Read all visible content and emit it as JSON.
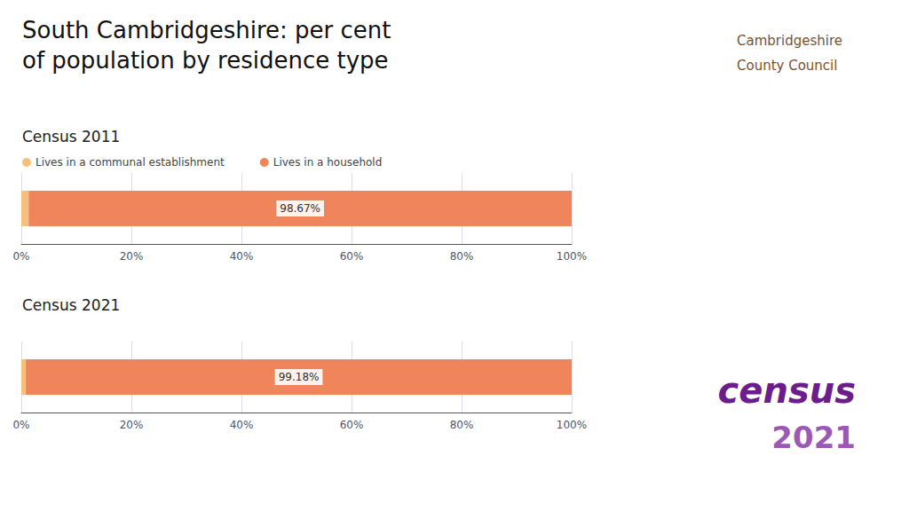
{
  "chart_data": [
    {
      "type": "bar",
      "orientation": "horizontal",
      "stacked": true,
      "title": "South Cambridgeshire: per cent\nof population by residence type",
      "subtitle": "Census 2011",
      "categories": [
        null
      ],
      "series": [
        {
          "name": "Lives in a communal establishment",
          "color": "#F5C07A",
          "values": [
            1.33
          ]
        },
        {
          "name": "Lives in a household",
          "color": "#F0845A",
          "values": [
            98.67
          ],
          "value_labels": [
            "98.67%"
          ]
        }
      ],
      "xlim": [
        0,
        100
      ],
      "xticks": [
        {
          "value": 0,
          "label": "0%"
        },
        {
          "value": 20,
          "label": "20%"
        },
        {
          "value": 40,
          "label": "40%"
        },
        {
          "value": 60,
          "label": "60%"
        },
        {
          "value": 80,
          "label": "80%"
        },
        {
          "value": 100,
          "label": "100%"
        }
      ],
      "grid": true,
      "legend": "upper left",
      "annotations": [
        {
          "text": "Cambridgeshire",
          "color": "#7B5230"
        },
        {
          "text": "County Council",
          "color": "#7B5230"
        }
      ]
    },
    {
      "type": "bar",
      "orientation": "horizontal",
      "stacked": true,
      "subtitle": "Census 2021",
      "categories": [
        null
      ],
      "series": [
        {
          "name": "Lives in a communal establishment",
          "color": "#F5C07A",
          "values": [
            0.82
          ]
        },
        {
          "name": "Lives in a household",
          "color": "#F0845A",
          "values": [
            99.18
          ],
          "value_labels": [
            "99.18%"
          ]
        }
      ],
      "xlim": [
        0,
        100
      ],
      "xticks": [
        {
          "value": 0,
          "label": "0%"
        },
        {
          "value": 20,
          "label": "20%"
        },
        {
          "value": 40,
          "label": "40%"
        },
        {
          "value": 60,
          "label": "60%"
        },
        {
          "value": 80,
          "label": "80%"
        },
        {
          "value": 100,
          "label": "100%"
        }
      ],
      "grid": true,
      "annotations": [
        {
          "text": "census",
          "color": "#6B1D8B"
        },
        {
          "text": "2021",
          "color": "#9B59B6"
        }
      ]
    }
  ]
}
